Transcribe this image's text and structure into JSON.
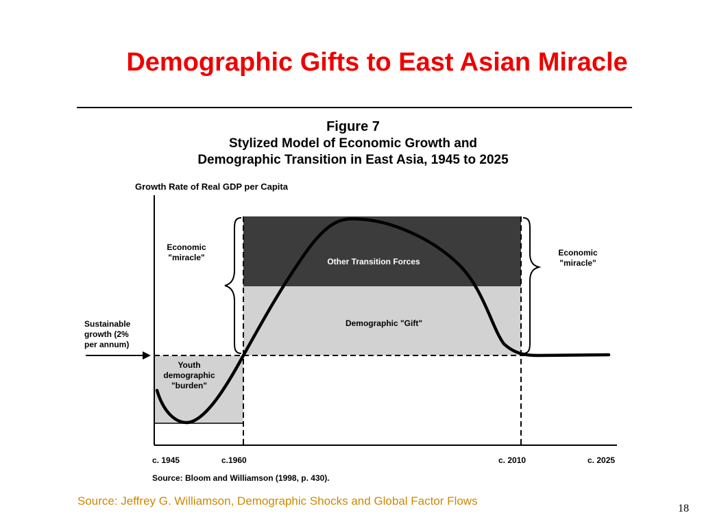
{
  "slide": {
    "title": "Demographic Gifts to East Asian Miracle",
    "source_footer": "Source: Jeffrey G. Williamson, Demographic Shocks and Global Factor Flows",
    "page_number": "18"
  },
  "figure": {
    "number": "Figure 7",
    "title_line1": "Stylized Model of Economic Growth and",
    "title_line2": "Demographic Transition in East Asia, 1945 to 2025",
    "y_axis_label": "Growth Rate of Real GDP per Capita",
    "x_ticks": [
      "c. 1945",
      "c.1960",
      "c. 2010",
      "c. 2025"
    ],
    "citation": "Source: Bloom and Williamson (1998, p. 430).",
    "regions": {
      "other_forces": "Other Transition Forces",
      "demographic_gift": "Demographic \"Gift\"",
      "youth_burden": [
        "Youth",
        "demographic",
        "\"burden\""
      ]
    },
    "annotations": {
      "miracle_left": [
        "Economic",
        "\"miracle\""
      ],
      "miracle_right": [
        "Economic",
        "\"miracle\""
      ],
      "sustainable": [
        "Sustainable",
        "growth (2%",
        "per annum)"
      ]
    },
    "colors": {
      "other_forces_fill": "#3c3c3c",
      "gift_fill": "#d2d2d2",
      "burden_fill": "#d2d2d2",
      "title_red": "#ee0000",
      "footer_amber": "#cc8800"
    }
  }
}
